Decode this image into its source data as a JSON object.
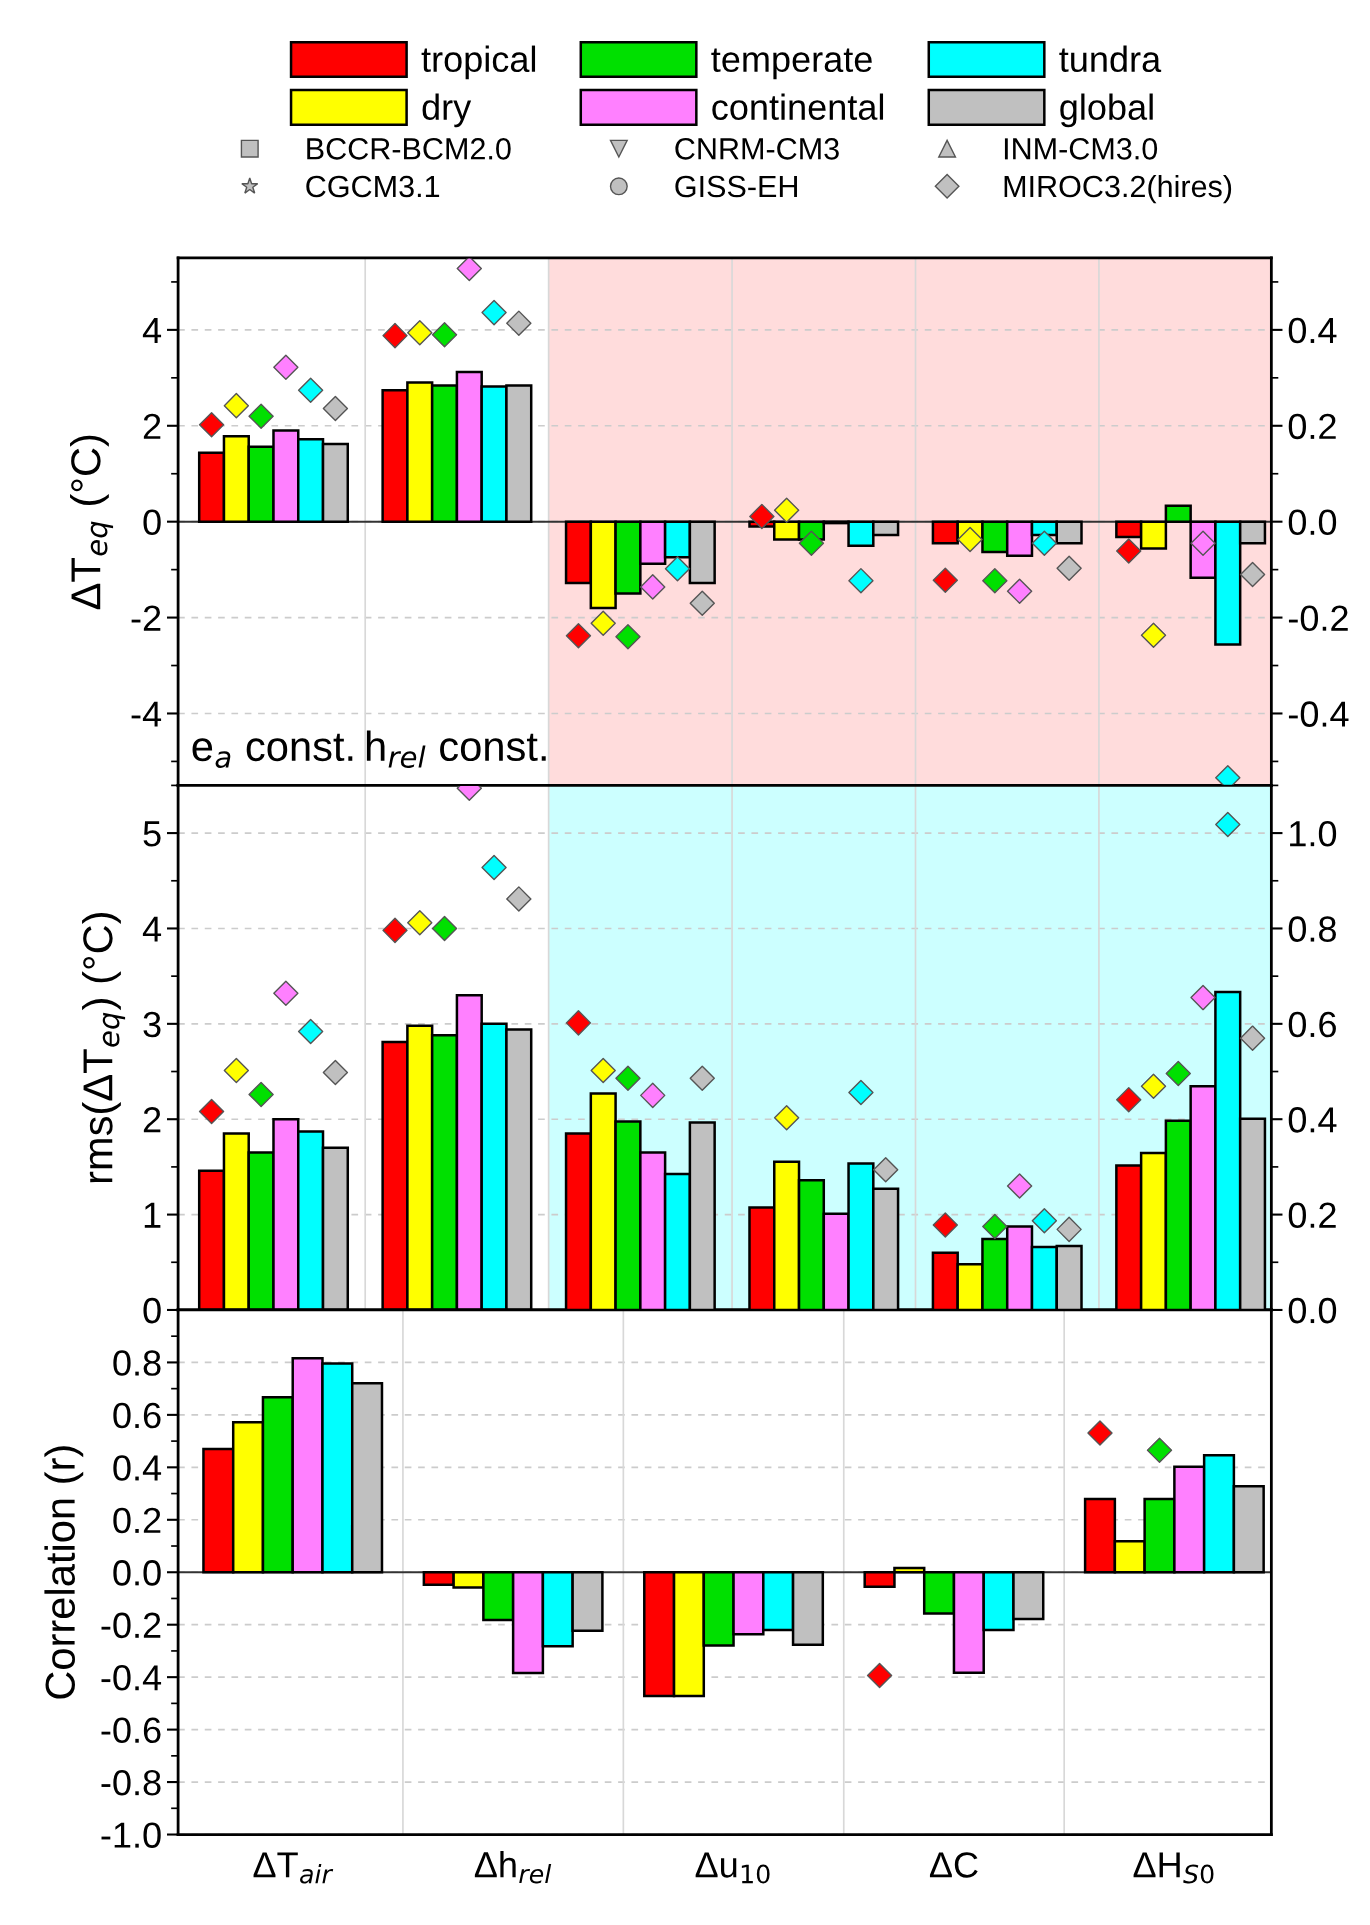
{
  "chart_data": [
    {
      "type": "bar",
      "categories": [
        null,
        null,
        null,
        null,
        null,
        null
      ],
      "ylabel": "ΔT$_{eq}$ (°C)",
      "ylim": [
        -5.5,
        5.5
      ],
      "yticks": [
        -4,
        -2,
        0,
        2,
        4
      ],
      "y2lim": [
        -0.55,
        0.55
      ],
      "y2ticks": [
        {
          "value": -0.4,
          "label": "-0.4"
        },
        {
          "value": -0.2,
          "label": "-0.2"
        },
        {
          "value": 0,
          "label": "0.0"
        },
        {
          "value": 0.2,
          "label": "0.2"
        },
        {
          "value": 0.4,
          "label": "0.4"
        }
      ],
      "tick_labels": "y",
      "grid": true,
      "legend": "top",
      "annotations": [
        "e$_{a}$ const.",
        "h$_{rel}$ const."
      ],
      "series": [
        {
          "name": "tropical",
          "color": "#ff0000",
          "values": [
            1.44,
            2.74,
            null,
            null,
            null,
            null
          ]
        },
        {
          "name": "dry",
          "color": "#ffff00",
          "values": [
            1.78,
            2.9,
            null,
            null,
            null,
            null
          ]
        },
        {
          "name": "temperate",
          "color": "#00e000",
          "values": [
            1.56,
            2.84,
            null,
            null,
            null,
            null
          ]
        },
        {
          "name": "continental",
          "color": "#ff80ff",
          "values": [
            1.9,
            3.12,
            null,
            null,
            null,
            null
          ]
        },
        {
          "name": "tundra",
          "color": "#00ffff",
          "values": [
            1.72,
            2.82,
            null,
            null,
            null,
            null
          ]
        },
        {
          "name": "global",
          "color": "#c0c0c0",
          "values": [
            1.62,
            2.84,
            null,
            null,
            null,
            null
          ]
        },
        {
          "color": "#ff0000",
          "axis": "y2",
          "values": [
            null,
            null,
            -0.128,
            -0.01,
            -0.045,
            -0.032
          ]
        },
        {
          "color": "#ffff00",
          "axis": "y2",
          "values": [
            null,
            null,
            -0.18,
            -0.037,
            -0.037,
            -0.056
          ]
        },
        {
          "color": "#00e000",
          "axis": "y2",
          "values": [
            null,
            null,
            -0.15,
            -0.037,
            -0.063,
            0.033
          ]
        },
        {
          "color": "#ff80ff",
          "axis": "y2",
          "values": [
            null,
            null,
            -0.088,
            -0.003,
            -0.071,
            -0.117
          ]
        },
        {
          "color": "#00ffff",
          "axis": "y2",
          "values": [
            null,
            null,
            -0.074,
            -0.05,
            -0.028,
            -0.256
          ]
        },
        {
          "color": "#c0c0c0",
          "axis": "y2",
          "values": [
            null,
            null,
            -0.128,
            -0.028,
            -0.045,
            -0.045
          ]
        },
        {
          "type": "scatter",
          "name": "BCCR-BCM2.0",
          "marker": "square",
          "color": "#c0c0c0",
          "values": [
            null,
            null,
            null,
            null,
            null,
            null
          ]
        },
        {
          "type": "scatter",
          "name": "CGCM3.1",
          "marker": "star",
          "color": "#c0c0c0",
          "values": [
            null,
            null,
            null,
            null,
            null,
            null
          ]
        },
        {
          "type": "scatter",
          "name": "CNRM-CM3",
          "marker": "triangle_down",
          "color": "#c0c0c0",
          "values": [
            null,
            null,
            null,
            null,
            null,
            null
          ]
        },
        {
          "type": "scatter",
          "name": "GISS-EH",
          "marker": "circle",
          "color": "#c0c0c0",
          "values": [
            null,
            null,
            null,
            null,
            null,
            null
          ]
        },
        {
          "type": "scatter",
          "name": "INM-CM3.0",
          "marker": "triangle",
          "color": "#c0c0c0",
          "values": [
            null,
            null,
            null,
            null,
            null,
            null
          ]
        },
        {
          "type": "scatter",
          "marker": "diamond",
          "color": "#ff0000",
          "values": [
            2.02,
            3.88,
            null,
            null,
            null,
            null
          ]
        },
        {
          "type": "scatter",
          "marker": "diamond",
          "color": "#ffff00",
          "values": [
            2.42,
            3.94,
            null,
            null,
            null,
            null
          ]
        },
        {
          "type": "scatter",
          "marker": "diamond",
          "color": "#00e000",
          "values": [
            2.2,
            3.9,
            null,
            null,
            null,
            null
          ]
        },
        {
          "type": "scatter",
          "marker": "diamond",
          "color": "#ff80ff",
          "values": [
            3.22,
            5.28,
            null,
            null,
            null,
            null
          ]
        },
        {
          "type": "scatter",
          "marker": "diamond",
          "color": "#00ffff",
          "values": [
            2.74,
            4.36,
            null,
            null,
            null,
            null
          ]
        },
        {
          "type": "scatter",
          "name": "MIROC3.2(hires)",
          "marker": "diamond",
          "color": "#c0c0c0",
          "values": [
            2.36,
            4.14,
            null,
            null,
            null,
            null
          ]
        },
        {
          "type": "scatter",
          "marker": "diamond",
          "color": "#ff0000",
          "axis": "y2",
          "values": [
            null,
            null,
            -0.238,
            0.011,
            -0.122,
            -0.061
          ]
        },
        {
          "type": "scatter",
          "marker": "diamond",
          "color": "#ffff00",
          "axis": "y2",
          "values": [
            null,
            null,
            -0.212,
            0.024,
            -0.037,
            -0.237
          ]
        },
        {
          "type": "scatter",
          "marker": "diamond",
          "color": "#00e000",
          "axis": "y2",
          "values": [
            null,
            null,
            -0.24,
            -0.045,
            -0.123,
            null
          ]
        },
        {
          "type": "scatter",
          "marker": "diamond",
          "color": "#ff80ff",
          "axis": "y2",
          "values": [
            null,
            null,
            -0.136,
            null,
            -0.145,
            -0.045
          ]
        },
        {
          "type": "scatter",
          "marker": "diamond",
          "color": "#00ffff",
          "axis": "y2",
          "values": [
            null,
            null,
            -0.098,
            -0.123,
            -0.045,
            -0.534
          ]
        },
        {
          "type": "scatter",
          "marker": "diamond",
          "color": "#c0c0c0",
          "axis": "y2",
          "values": [
            null,
            null,
            -0.17,
            null,
            -0.097,
            -0.11
          ]
        }
      ]
    },
    {
      "type": "bar",
      "categories": [
        null,
        null,
        null,
        null,
        null,
        null
      ],
      "ylabel": "rms(ΔT$_{eq}$) (°C)",
      "ylim": [
        0,
        5.5
      ],
      "yticks": [
        0,
        1,
        2,
        3,
        4,
        5
      ],
      "y2lim": [
        0,
        1.1
      ],
      "y2ticks": [
        {
          "value": 0,
          "label": "0.0"
        },
        0.2,
        0.4,
        0.6,
        0.8,
        {
          "value": 1,
          "label": "1.0"
        }
      ],
      "tick_labels": "y",
      "grid": true,
      "series": [
        {
          "color": "#ff0000",
          "values": [
            1.46,
            2.81,
            null,
            null,
            null,
            null
          ]
        },
        {
          "color": "#ffff00",
          "values": [
            1.85,
            2.98,
            null,
            null,
            null,
            null
          ]
        },
        {
          "color": "#00e000",
          "values": [
            1.65,
            2.88,
            null,
            null,
            null,
            null
          ]
        },
        {
          "color": "#ff80ff",
          "values": [
            2.0,
            3.3,
            null,
            null,
            null,
            null
          ]
        },
        {
          "color": "#00ffff",
          "values": [
            1.87,
            3.0,
            null,
            null,
            null,
            null
          ]
        },
        {
          "color": "#c0c0c0",
          "values": [
            1.7,
            2.94,
            null,
            null,
            null,
            null
          ]
        },
        {
          "color": "#ff0000",
          "axis": "y2",
          "values": [
            null,
            null,
            0.37,
            0.215,
            0.12,
            0.303
          ]
        },
        {
          "color": "#ffff00",
          "axis": "y2",
          "values": [
            null,
            null,
            0.454,
            0.311,
            0.096,
            0.329
          ]
        },
        {
          "color": "#00e000",
          "axis": "y2",
          "values": [
            null,
            null,
            0.395,
            0.272,
            0.149,
            0.397
          ]
        },
        {
          "color": "#ff80ff",
          "axis": "y2",
          "values": [
            null,
            null,
            0.33,
            0.202,
            0.175,
            0.469
          ]
        },
        {
          "color": "#00ffff",
          "axis": "y2",
          "values": [
            null,
            null,
            0.285,
            0.307,
            0.132,
            0.667
          ]
        },
        {
          "color": "#c0c0c0",
          "axis": "y2",
          "values": [
            null,
            null,
            0.393,
            0.254,
            0.134,
            0.401
          ]
        },
        {
          "type": "scatter",
          "marker": "diamond",
          "color": "#ff0000",
          "values": [
            2.08,
            3.98,
            null,
            null,
            null,
            null
          ]
        },
        {
          "type": "scatter",
          "marker": "diamond",
          "color": "#ffff00",
          "values": [
            2.51,
            4.06,
            null,
            null,
            null,
            null
          ]
        },
        {
          "type": "scatter",
          "marker": "diamond",
          "color": "#00e000",
          "values": [
            2.26,
            4.0,
            null,
            null,
            null,
            null
          ]
        },
        {
          "type": "scatter",
          "marker": "diamond",
          "color": "#ff80ff",
          "values": [
            3.32,
            5.47,
            null,
            null,
            null,
            null
          ]
        },
        {
          "type": "scatter",
          "marker": "diamond",
          "color": "#00ffff",
          "values": [
            2.92,
            4.64,
            null,
            null,
            null,
            null
          ]
        },
        {
          "type": "scatter",
          "marker": "diamond",
          "color": "#c0c0c0",
          "values": [
            2.49,
            4.31,
            null,
            null,
            null,
            null
          ]
        },
        {
          "type": "scatter",
          "marker": "diamond",
          "color": "#ff0000",
          "axis": "y2",
          "values": [
            null,
            null,
            0.602,
            null,
            0.178,
            0.441
          ]
        },
        {
          "type": "scatter",
          "marker": "diamond",
          "color": "#ffff00",
          "axis": "y2",
          "values": [
            null,
            null,
            0.502,
            0.403,
            null,
            0.469
          ]
        },
        {
          "type": "scatter",
          "marker": "diamond",
          "color": "#00e000",
          "axis": "y2",
          "values": [
            null,
            null,
            0.486,
            null,
            0.175,
            0.496
          ]
        },
        {
          "type": "scatter",
          "marker": "diamond",
          "color": "#ff80ff",
          "axis": "y2",
          "values": [
            null,
            null,
            0.45,
            null,
            0.26,
            0.655
          ]
        },
        {
          "type": "scatter",
          "marker": "diamond",
          "color": "#00ffff",
          "axis": "y2",
          "values": [
            null,
            null,
            null,
            0.456,
            0.187,
            1.018
          ]
        },
        {
          "type": "scatter",
          "marker": "diamond",
          "color": "#c0c0c0",
          "axis": "y2",
          "values": [
            null,
            null,
            0.486,
            0.294,
            0.169,
            0.57
          ]
        }
      ]
    },
    {
      "type": "bar",
      "categories": [
        "ΔT$_{air}$",
        "Δh$_{rel}$",
        "Δu$_{10}$",
        "ΔC",
        "ΔH$_{S0}$"
      ],
      "ylabel": "Correlation (r)",
      "ylim": [
        -1,
        1
      ],
      "yticks": [
        {
          "value": -1,
          "label": "-1.0"
        },
        -0.8,
        -0.6,
        -0.4,
        -0.2,
        {
          "value": 0,
          "label": "0.0"
        },
        0.2,
        0.4,
        0.6,
        0.8
      ],
      "grid": true,
      "series": [
        {
          "color": "#ff0000",
          "values": [
            0.47,
            -0.048,
            -0.472,
            -0.055,
            0.279
          ]
        },
        {
          "color": "#ffff00",
          "values": [
            0.572,
            -0.058,
            -0.472,
            0.016,
            0.118
          ]
        },
        {
          "color": "#00e000",
          "values": [
            0.667,
            -0.182,
            -0.279,
            -0.157,
            0.279
          ]
        },
        {
          "color": "#ff80ff",
          "values": [
            0.816,
            -0.384,
            -0.236,
            -0.383,
            0.402
          ]
        },
        {
          "color": "#00ffff",
          "values": [
            0.796,
            -0.282,
            -0.22,
            -0.22,
            0.446
          ]
        },
        {
          "color": "#c0c0c0",
          "values": [
            0.721,
            -0.223,
            -0.276,
            -0.178,
            0.328
          ]
        },
        {
          "type": "scatter",
          "marker": "diamond",
          "color": "#ff0000",
          "values": [
            null,
            null,
            null,
            -0.394,
            0.531
          ]
        },
        {
          "type": "scatter",
          "marker": "diamond",
          "color": "#00e000",
          "values": [
            null,
            null,
            null,
            null,
            0.465
          ]
        }
      ]
    }
  ]
}
